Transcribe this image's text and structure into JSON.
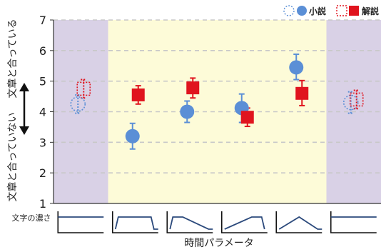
{
  "chart_data": {
    "type": "scatter",
    "ylim": [
      1,
      7
    ],
    "yticks": [
      1,
      2,
      3,
      4,
      5,
      6,
      7
    ],
    "ylabel_top": "文章と合っている",
    "ylabel_bottom": "文章と合っていない",
    "xlabel": "時間パラメータ",
    "row_label": "文字の濃さ",
    "grid": true,
    "legend": "top-right",
    "groups": 6,
    "shaded_groups": [
      0,
      5
    ],
    "series": [
      {
        "name": "小説",
        "marker": "circle",
        "color": "#5b8fd6",
        "points": [
          {
            "group": 0,
            "y": 4.25,
            "low": 3.95,
            "high": 4.55,
            "style": "dashed"
          },
          {
            "group": 1,
            "y": 3.2,
            "low": 2.78,
            "high": 3.62,
            "style": "filled"
          },
          {
            "group": 2,
            "y": 4.0,
            "low": 3.65,
            "high": 4.35,
            "style": "filled"
          },
          {
            "group": 3,
            "y": 4.12,
            "low": 3.65,
            "high": 4.58,
            "style": "filled"
          },
          {
            "group": 4,
            "y": 5.45,
            "low": 5.05,
            "high": 5.88,
            "style": "filled"
          },
          {
            "group": 5,
            "y": 4.3,
            "low": 3.95,
            "high": 4.65,
            "style": "dashed"
          }
        ]
      },
      {
        "name": "解説",
        "marker": "square",
        "color": "#e0141e",
        "points": [
          {
            "group": 0,
            "y": 4.75,
            "low": 4.45,
            "high": 5.05,
            "style": "dashed"
          },
          {
            "group": 1,
            "y": 4.55,
            "low": 4.25,
            "high": 4.85,
            "style": "filled"
          },
          {
            "group": 2,
            "y": 4.78,
            "low": 4.45,
            "high": 5.1,
            "style": "filled"
          },
          {
            "group": 3,
            "y": 3.82,
            "low": 3.52,
            "high": 4.12,
            "style": "filled"
          },
          {
            "group": 4,
            "y": 4.6,
            "low": 4.2,
            "high": 5.02,
            "style": "filled"
          },
          {
            "group": 5,
            "y": 4.4,
            "low": 4.1,
            "high": 4.7,
            "style": "dashed"
          }
        ]
      }
    ],
    "profiles": [
      "flat",
      "trapezoid",
      "ramp-down",
      "ramp-up-hold",
      "tent",
      "flat"
    ],
    "colors": {
      "shaded": "#d9d1e6",
      "plot": "#fdfbd8",
      "profile_line": "#2c4a7c"
    }
  }
}
